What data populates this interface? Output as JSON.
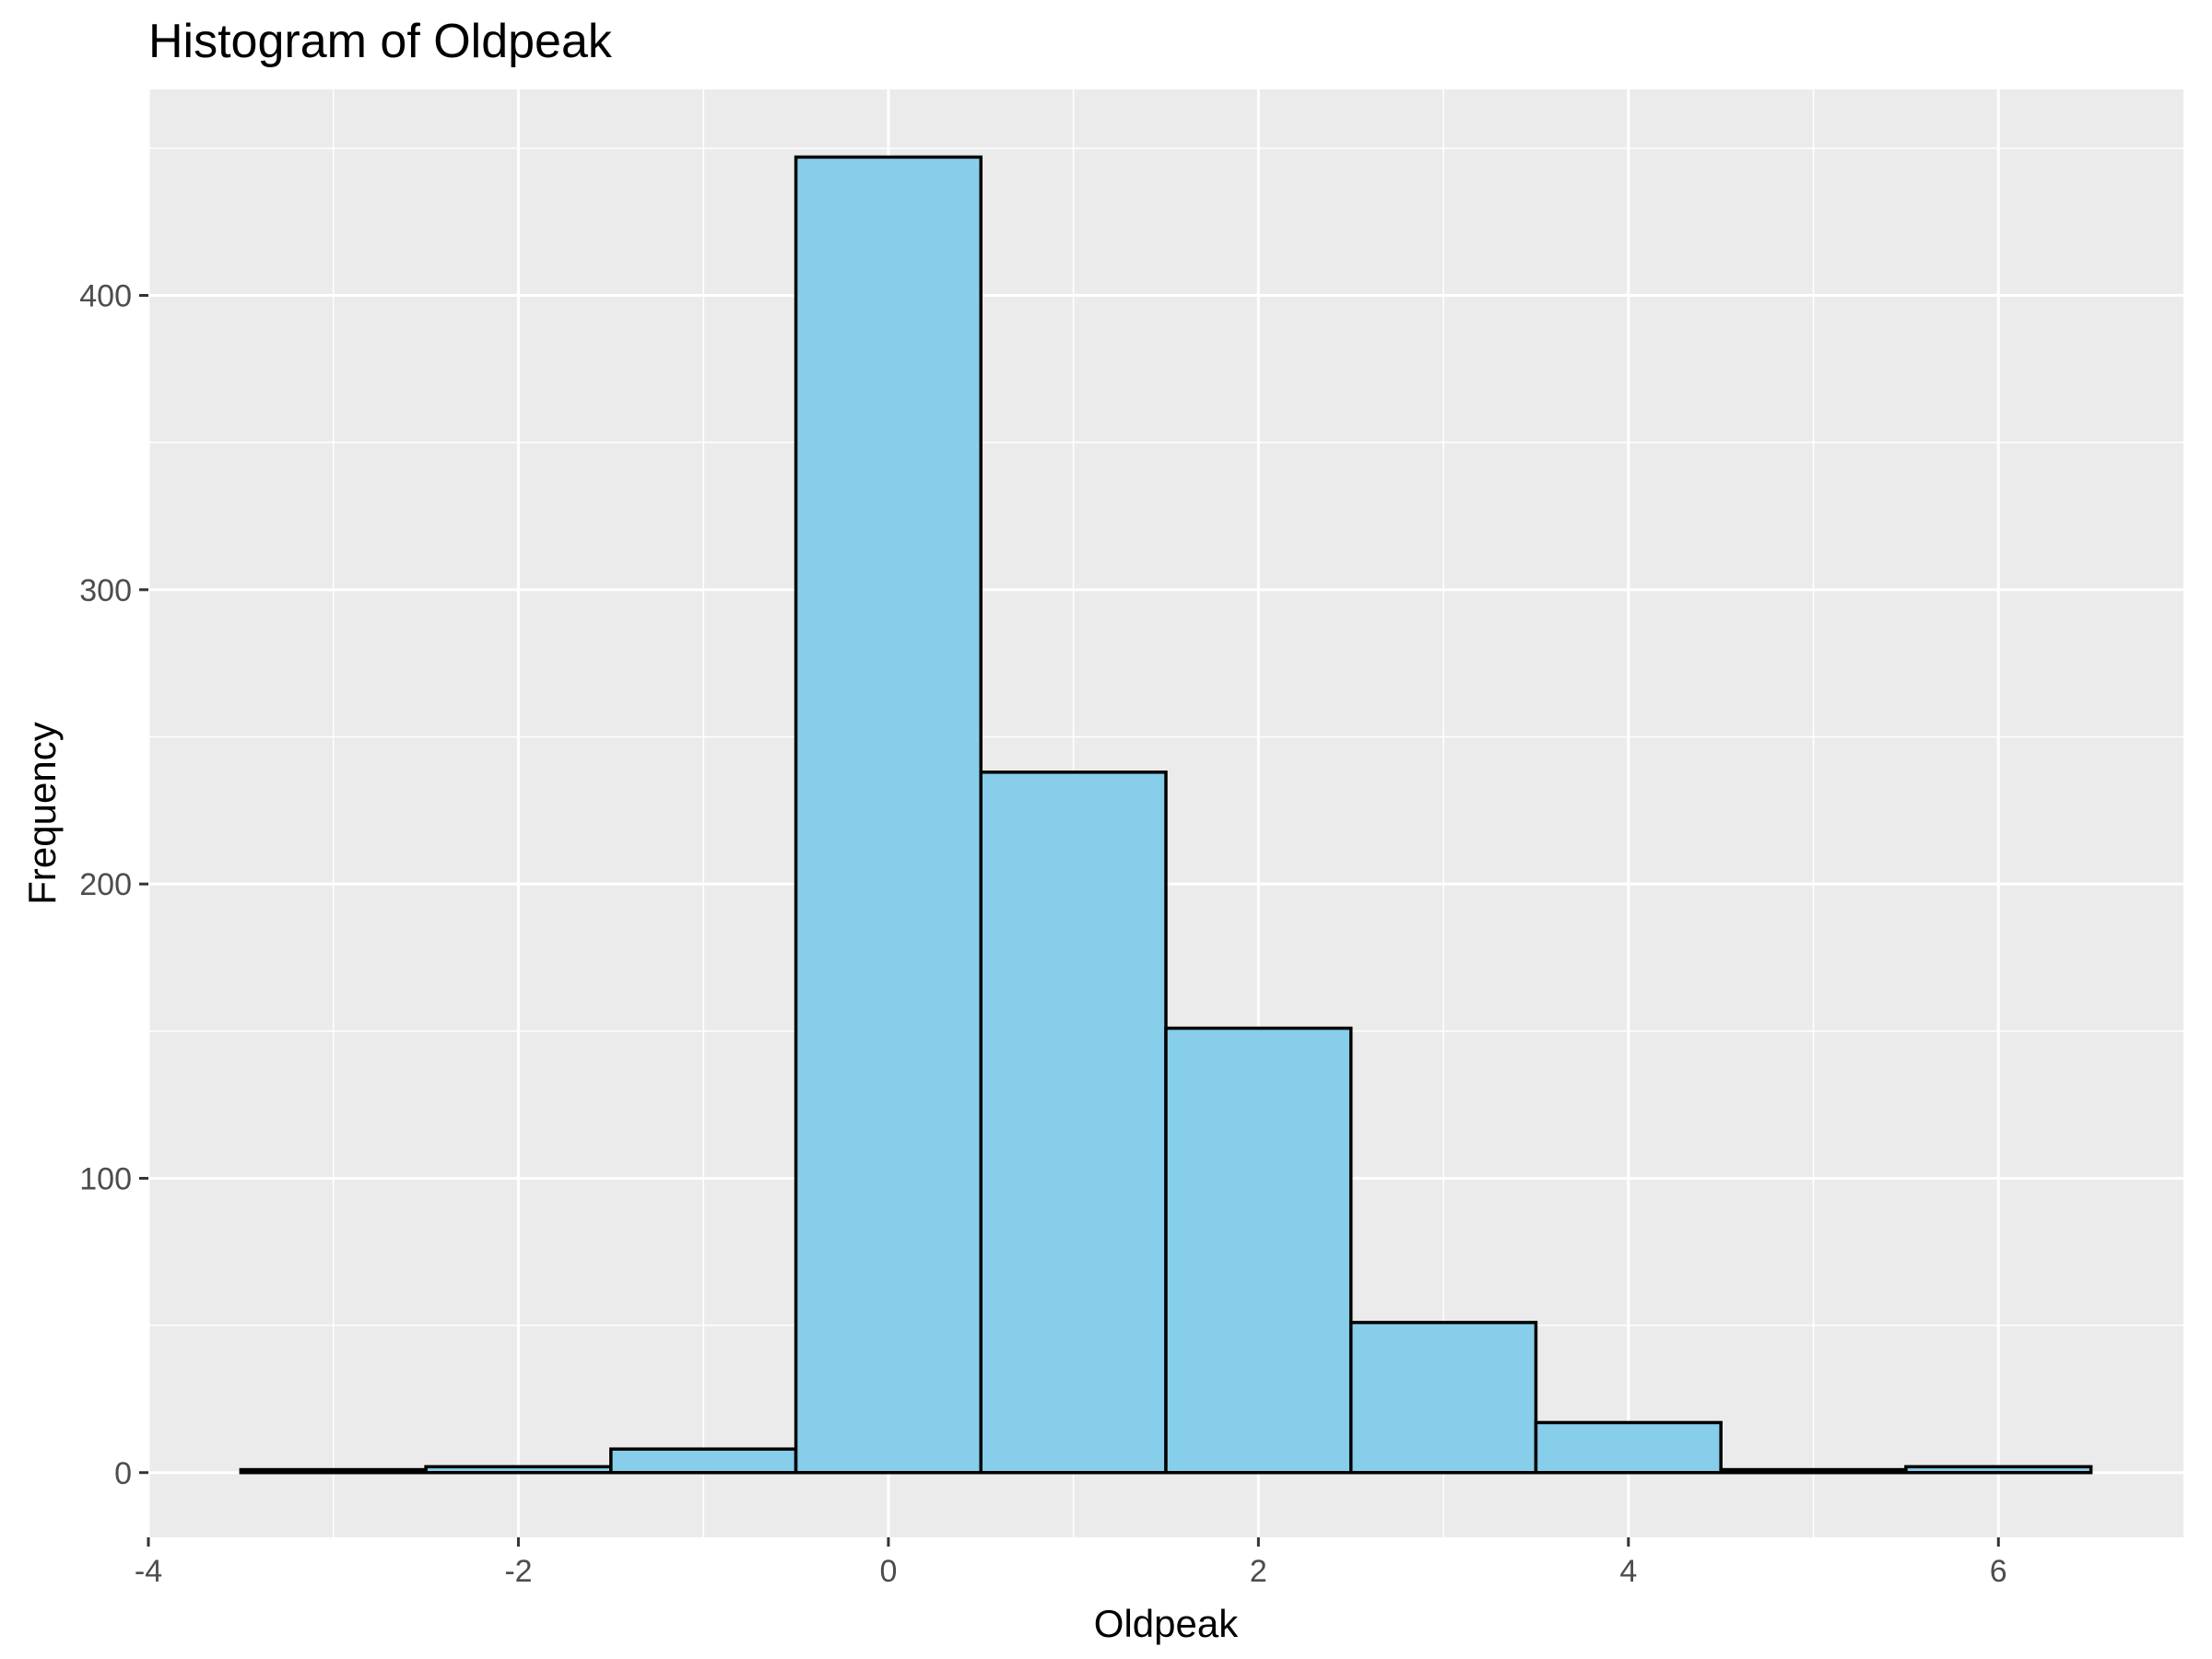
{
  "chart_data": {
    "type": "bar",
    "title": "Histogram of Oldpeak",
    "xlabel": "Oldpeak",
    "ylabel": "Frequency",
    "xlim": [
      -4,
      7
    ],
    "ylim": [
      -22,
      470
    ],
    "x_ticks": [
      -4,
      -2,
      0,
      2,
      4,
      6
    ],
    "x_tick_labels": [
      "-4",
      "-2",
      "0",
      "2",
      "4",
      "6"
    ],
    "y_ticks": [
      0,
      100,
      200,
      300,
      400
    ],
    "y_tick_labels": [
      "0",
      "100",
      "200",
      "300",
      "400"
    ],
    "bin_width": 1,
    "bins": [
      {
        "x0": -3.5,
        "x1": -2.5,
        "count": 1
      },
      {
        "x0": -2.5,
        "x1": -1.5,
        "count": 2
      },
      {
        "x0": -1.5,
        "x1": -0.5,
        "count": 8
      },
      {
        "x0": -0.5,
        "x1": 0.5,
        "count": 447
      },
      {
        "x0": 0.5,
        "x1": 1.5,
        "count": 238
      },
      {
        "x0": 1.5,
        "x1": 2.5,
        "count": 151
      },
      {
        "x0": 2.5,
        "x1": 3.5,
        "count": 51
      },
      {
        "x0": 3.5,
        "x1": 4.5,
        "count": 17
      },
      {
        "x0": 4.5,
        "x1": 5.5,
        "count": 1
      },
      {
        "x0": 5.5,
        "x1": 6.5,
        "count": 2
      }
    ],
    "grid": true,
    "colors": {
      "bar_fill": "#87CEEB",
      "bar_outline": "#000000",
      "panel_background": "#EBEBEB",
      "grid": "#FFFFFF"
    }
  }
}
